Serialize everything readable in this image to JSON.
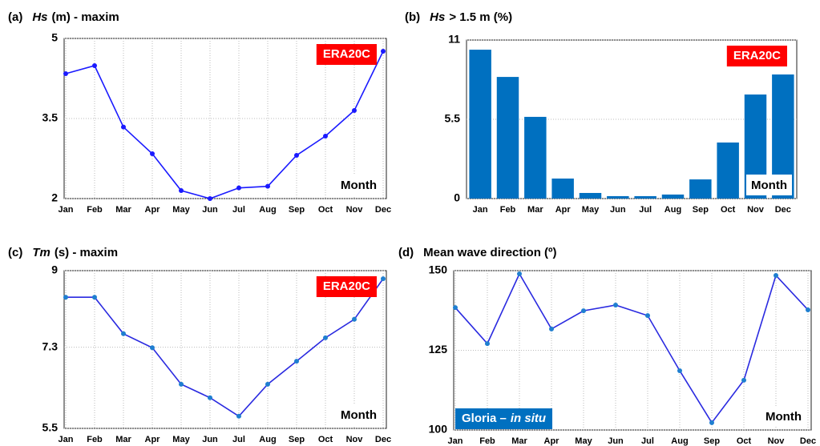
{
  "chart_data": [
    {
      "type": "line",
      "panel": "(a)",
      "title_italic": "Hs",
      "title": "(m) - maxim",
      "badge": "ERA20C",
      "badge_color": "#ff0000",
      "badge_corner": "upper right",
      "xlabel": "Month",
      "categories": [
        "Jan",
        "Feb",
        "Mar",
        "Apr",
        "May",
        "Jun",
        "Jul",
        "Aug",
        "Sep",
        "Oct",
        "Nov",
        "Dec"
      ],
      "values": [
        4.34,
        4.49,
        3.34,
        2.84,
        2.15,
        2.0,
        2.2,
        2.23,
        2.81,
        3.17,
        3.65,
        4.76
      ],
      "color": "#1a1aff",
      "marker_color": "#1a1aff",
      "ylim": [
        2,
        5
      ],
      "yticks": [
        2,
        3.5,
        5
      ],
      "grid": true
    },
    {
      "type": "bar",
      "panel": "(b)",
      "title_italic": "Hs",
      "title": "> 1.5 m (%)",
      "badge": "ERA20C",
      "badge_color": "#ff0000",
      "badge_corner": "upper right",
      "xlabel": "Month",
      "categories": [
        "Jan",
        "Feb",
        "Mar",
        "Apr",
        "May",
        "Jun",
        "Jul",
        "Aug",
        "Sep",
        "Oct",
        "Nov",
        "Dec"
      ],
      "values": [
        10.33,
        8.44,
        5.67,
        1.39,
        0.39,
        0.17,
        0.17,
        0.28,
        1.33,
        3.89,
        7.22,
        8.61
      ],
      "color": "#0070c0",
      "ylim": [
        0,
        11
      ],
      "yticks": [
        0,
        5.5,
        11
      ],
      "grid": true
    },
    {
      "type": "line",
      "panel": "(c)",
      "title_italic": "Tm",
      "title": "(s) - maxim",
      "badge": "ERA20C",
      "badge_color": "#ff0000",
      "badge_corner": "upper right",
      "xlabel": "Month",
      "categories": [
        "Jan",
        "Feb",
        "Mar",
        "Apr",
        "May",
        "Jun",
        "Jul",
        "Aug",
        "Sep",
        "Oct",
        "Nov",
        "Dec"
      ],
      "values": [
        8.41,
        8.41,
        7.6,
        7.29,
        6.48,
        6.18,
        5.77,
        6.48,
        6.99,
        7.51,
        7.92,
        8.82
      ],
      "color": "#2a2ae0",
      "marker_color": "#1f7fd0",
      "ylim": [
        5.5,
        9
      ],
      "yticks": [
        5.5,
        7.3,
        9
      ],
      "grid": true
    },
    {
      "type": "line",
      "panel": "(d)",
      "title": "Mean wave direction (º)",
      "badge": "Gloria –",
      "badge_italic": "in situ",
      "badge_color": "#0070c0",
      "badge_corner": "lower left",
      "xlabel": "Month",
      "categories": [
        "Jan",
        "Feb",
        "Mar",
        "Apr",
        "May",
        "Jun",
        "Jul",
        "Aug",
        "Sep",
        "Oct",
        "Nov",
        "Dec"
      ],
      "values": [
        138.4,
        127.1,
        149,
        131.7,
        137.4,
        139.2,
        135.9,
        118.6,
        102.3,
        115.6,
        148.5,
        137.7
      ],
      "color": "#2a2ae0",
      "marker_color": "#1f7fd0",
      "ylim": [
        100,
        150
      ],
      "yticks": [
        100,
        125,
        150
      ],
      "grid": true
    }
  ]
}
